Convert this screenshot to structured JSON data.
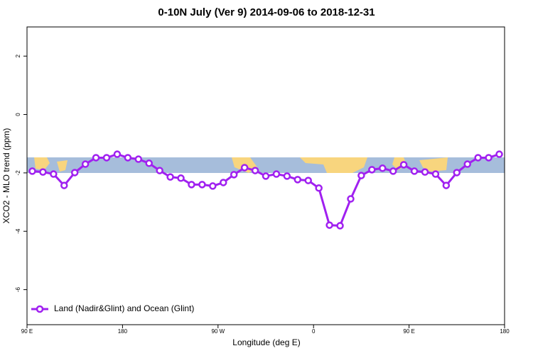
{
  "chart_data": {
    "type": "line",
    "title": "0-10N July (Ver 9)   2014-09-06 to 2018-12-31",
    "x_label": "Longitude (deg E)",
    "y_label": "XCO2 - MLO trend (ppm)",
    "x": [
      95,
      105,
      115,
      125,
      135,
      145,
      155,
      165,
      175,
      185,
      195,
      205,
      215,
      225,
      235,
      245,
      255,
      265,
      275,
      285,
      295,
      305,
      315,
      325,
      335,
      345,
      355,
      365,
      375,
      385,
      395,
      405,
      415,
      425,
      435,
      445,
      455,
      465,
      475,
      485,
      495,
      505,
      515,
      525,
      535
    ],
    "series": [
      {
        "name": "Land (Nadir&Glint) and Ocean (Glint)",
        "color": "#a020f0",
        "values": [
          -1.94,
          -1.97,
          -2.04,
          -2.43,
          -1.99,
          -1.7,
          -1.48,
          -1.48,
          -1.36,
          -1.48,
          -1.53,
          -1.67,
          -1.92,
          -2.14,
          -2.18,
          -2.4,
          -2.4,
          -2.45,
          -2.33,
          -2.06,
          -1.82,
          -1.92,
          -2.11,
          -2.04,
          -2.11,
          -2.23,
          -2.26,
          -2.52,
          -3.79,
          -3.81,
          -2.89,
          -2.09,
          -1.89,
          -1.84,
          -1.94,
          -1.72,
          -1.94,
          -1.97,
          -2.04,
          -2.43,
          -1.99,
          -1.7,
          -1.48,
          -1.48,
          -1.36
        ]
      }
    ],
    "xlim": [
      90,
      540
    ],
    "xticks": [
      {
        "value": 90,
        "label": "90 E"
      },
      {
        "value": 180,
        "label": "180"
      },
      {
        "value": 270,
        "label": "90 W"
      },
      {
        "value": 360,
        "label": "0"
      },
      {
        "value": 450,
        "label": "90 E"
      },
      {
        "value": 540,
        "label": "180"
      }
    ],
    "ylim": [
      -7.2,
      3
    ],
    "yticks": [
      2,
      0,
      -2,
      -4,
      -6
    ],
    "legend": "bottomleft"
  }
}
